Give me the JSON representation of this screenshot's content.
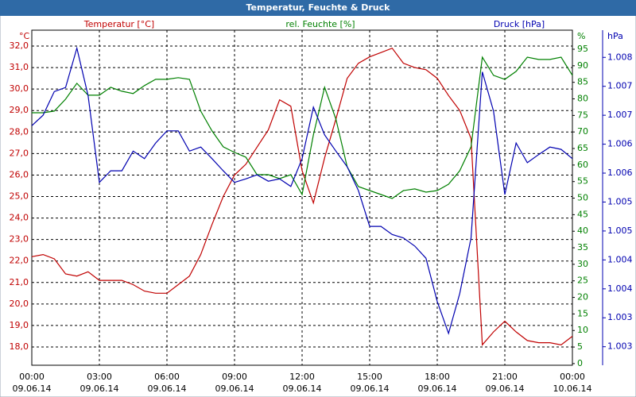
{
  "chart_data": {
    "type": "line",
    "title": "Temperatur, Feuchte & Druck",
    "y_unit": "°C",
    "y2_unit": "%",
    "y3_unit": "hPa",
    "x": [
      0,
      0.5,
      1,
      1.5,
      2,
      2.5,
      3,
      3.5,
      4,
      4.5,
      5,
      5.5,
      6,
      6.5,
      7,
      7.5,
      8,
      8.5,
      9,
      9.5,
      10,
      10.5,
      11,
      11.5,
      12,
      12.5,
      13,
      13.5,
      14,
      14.5,
      15,
      15.5,
      16,
      16.5,
      17,
      17.5,
      18,
      18.5,
      19,
      19.5,
      20,
      20.5,
      21,
      21.5,
      22,
      22.5,
      23,
      23.5,
      24
    ],
    "xlim": [
      0,
      24
    ],
    "xticks": [
      {
        "value": 0,
        "label": "00:00"
      },
      {
        "value": 3,
        "label": "03:00"
      },
      {
        "value": 6,
        "label": "06:00"
      },
      {
        "value": 9,
        "label": "09:00"
      },
      {
        "value": 12,
        "label": "12:00"
      },
      {
        "value": 15,
        "label": "15:00"
      },
      {
        "value": 18,
        "label": "18:00"
      },
      {
        "value": 21,
        "label": "21:00"
      },
      {
        "value": 24,
        "label": "00:00"
      }
    ],
    "xtick_dates": [
      "09.06.14",
      "09.06.14",
      "09.06.14",
      "09.06.14",
      "09.06.14",
      "09.06.14",
      "09.06.14",
      "09.06.14",
      "10.06.14"
    ],
    "ylim": [
      17.15,
      32.74
    ],
    "yticks": [
      {
        "value": 18,
        "label": "18,0"
      },
      {
        "value": 19,
        "label": "19,0"
      },
      {
        "value": 20,
        "label": "20,0"
      },
      {
        "value": 21,
        "label": "21,0"
      },
      {
        "value": 22,
        "label": "22,0"
      },
      {
        "value": 23,
        "label": "23,0"
      },
      {
        "value": 24,
        "label": "24,0"
      },
      {
        "value": 25,
        "label": "25,0"
      },
      {
        "value": 26,
        "label": "26,0"
      },
      {
        "value": 27,
        "label": "27,0"
      },
      {
        "value": 28,
        "label": "28,0"
      },
      {
        "value": 29,
        "label": "29,0"
      },
      {
        "value": 30,
        "label": "30,0"
      },
      {
        "value": 31,
        "label": "31,0"
      },
      {
        "value": 32,
        "label": "32,0"
      }
    ],
    "y2lim": [
      -0.5,
      100.76
    ],
    "y2ticks": [
      0,
      5,
      10,
      15,
      20,
      25,
      30,
      35,
      40,
      45,
      50,
      55,
      60,
      65,
      70,
      75,
      80,
      85,
      90,
      95
    ],
    "y3lim": [
      1.00243,
      1.00822
    ],
    "y3ticks": [
      {
        "value": 1.00775,
        "label": "1.008"
      },
      {
        "value": 1.00725,
        "label": "1.007"
      },
      {
        "value": 1.00675,
        "label": "1.007"
      },
      {
        "value": 1.00625,
        "label": "1.006"
      },
      {
        "value": 1.00575,
        "label": "1.006"
      },
      {
        "value": 1.00525,
        "label": "1.005"
      },
      {
        "value": 1.00475,
        "label": "1.005"
      },
      {
        "value": 1.00425,
        "label": "1.004"
      },
      {
        "value": 1.00375,
        "label": "1.004"
      },
      {
        "value": 1.00325,
        "label": "1.003"
      },
      {
        "value": 1.00275,
        "label": "1.003"
      }
    ],
    "grid": true,
    "series": [
      {
        "name": "Temperatur [°C]",
        "color": "#c00000",
        "axis": "y",
        "values": [
          22.2,
          22.3,
          22.1,
          21.4,
          21.3,
          21.5,
          21.1,
          21.1,
          21.1,
          20.9,
          20.6,
          20.5,
          20.5,
          20.9,
          21.3,
          22.3,
          23.7,
          25.0,
          26.0,
          26.5,
          27.3,
          28.1,
          29.5,
          29.2,
          26.2,
          24.7,
          26.8,
          28.6,
          30.5,
          31.2,
          31.5,
          31.7,
          31.9,
          31.2,
          31.0,
          30.9,
          30.5,
          29.7,
          29.0,
          27.7,
          18.1,
          18.7,
          19.2,
          18.7,
          18.3,
          18.2,
          18.2,
          18.1,
          18.5
        ]
      },
      {
        "name": "rel. Feuchte [%]",
        "color": "#008000",
        "axis": "y2",
        "values": [
          75.8,
          75.8,
          76.3,
          79.9,
          84.7,
          81.1,
          81.1,
          83.5,
          82.3,
          81.6,
          84.0,
          85.9,
          85.9,
          86.4,
          85.9,
          76.3,
          70.3,
          65.5,
          63.8,
          62.4,
          57.1,
          57.1,
          55.9,
          57.1,
          51.1,
          69.1,
          83.5,
          73.9,
          59.5,
          53.5,
          52.3,
          51.1,
          49.9,
          52.3,
          52.8,
          51.8,
          52.3,
          54.2,
          58.3,
          65.5,
          92.6,
          87.1,
          85.9,
          88.3,
          92.6,
          91.9,
          91.9,
          92.6,
          87.1
        ]
      },
      {
        "name": "Druck [hPa]",
        "color": "#0000b0",
        "axis": "y3",
        "values": [
          1.00657,
          1.00675,
          1.00716,
          1.00723,
          1.00791,
          1.00709,
          1.00559,
          1.00579,
          1.00579,
          1.00613,
          1.006,
          1.00627,
          1.00648,
          1.00648,
          1.00613,
          1.0062,
          1.006,
          1.00579,
          1.00559,
          1.00565,
          1.00572,
          1.00561,
          1.00565,
          1.00552,
          1.006,
          1.00689,
          1.00641,
          1.00613,
          1.00586,
          1.00545,
          1.00483,
          1.00483,
          1.00469,
          1.00463,
          1.00449,
          1.00428,
          1.00353,
          1.00298,
          1.00367,
          1.00463,
          1.0075,
          1.00682,
          1.00538,
          1.00627,
          1.00593,
          1.00607,
          1.0062,
          1.00616,
          1.006
        ]
      }
    ]
  }
}
